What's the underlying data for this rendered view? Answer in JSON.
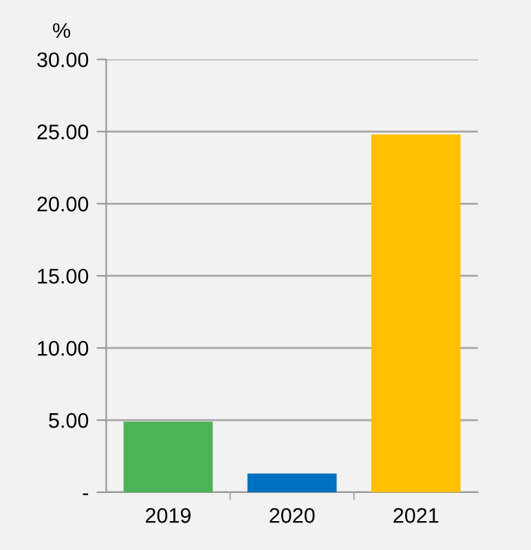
{
  "chart_data": {
    "type": "bar",
    "ylabel": "%",
    "categories": [
      "2019",
      "2020",
      "2021"
    ],
    "values": [
      4.9,
      1.3,
      24.8
    ],
    "colors": [
      "#4db357",
      "#0070c0",
      "#ffc000"
    ],
    "ylim": [
      0,
      30
    ],
    "yticks": [
      {
        "value": 0,
        "label": "-"
      },
      {
        "value": 5,
        "label": "5.00"
      },
      {
        "value": 10,
        "label": "10.00"
      },
      {
        "value": 15,
        "label": "15.00"
      },
      {
        "value": 20,
        "label": "20.00"
      },
      {
        "value": 25,
        "label": "25.00"
      },
      {
        "value": 30,
        "label": "30.00"
      }
    ],
    "grid": "y"
  }
}
